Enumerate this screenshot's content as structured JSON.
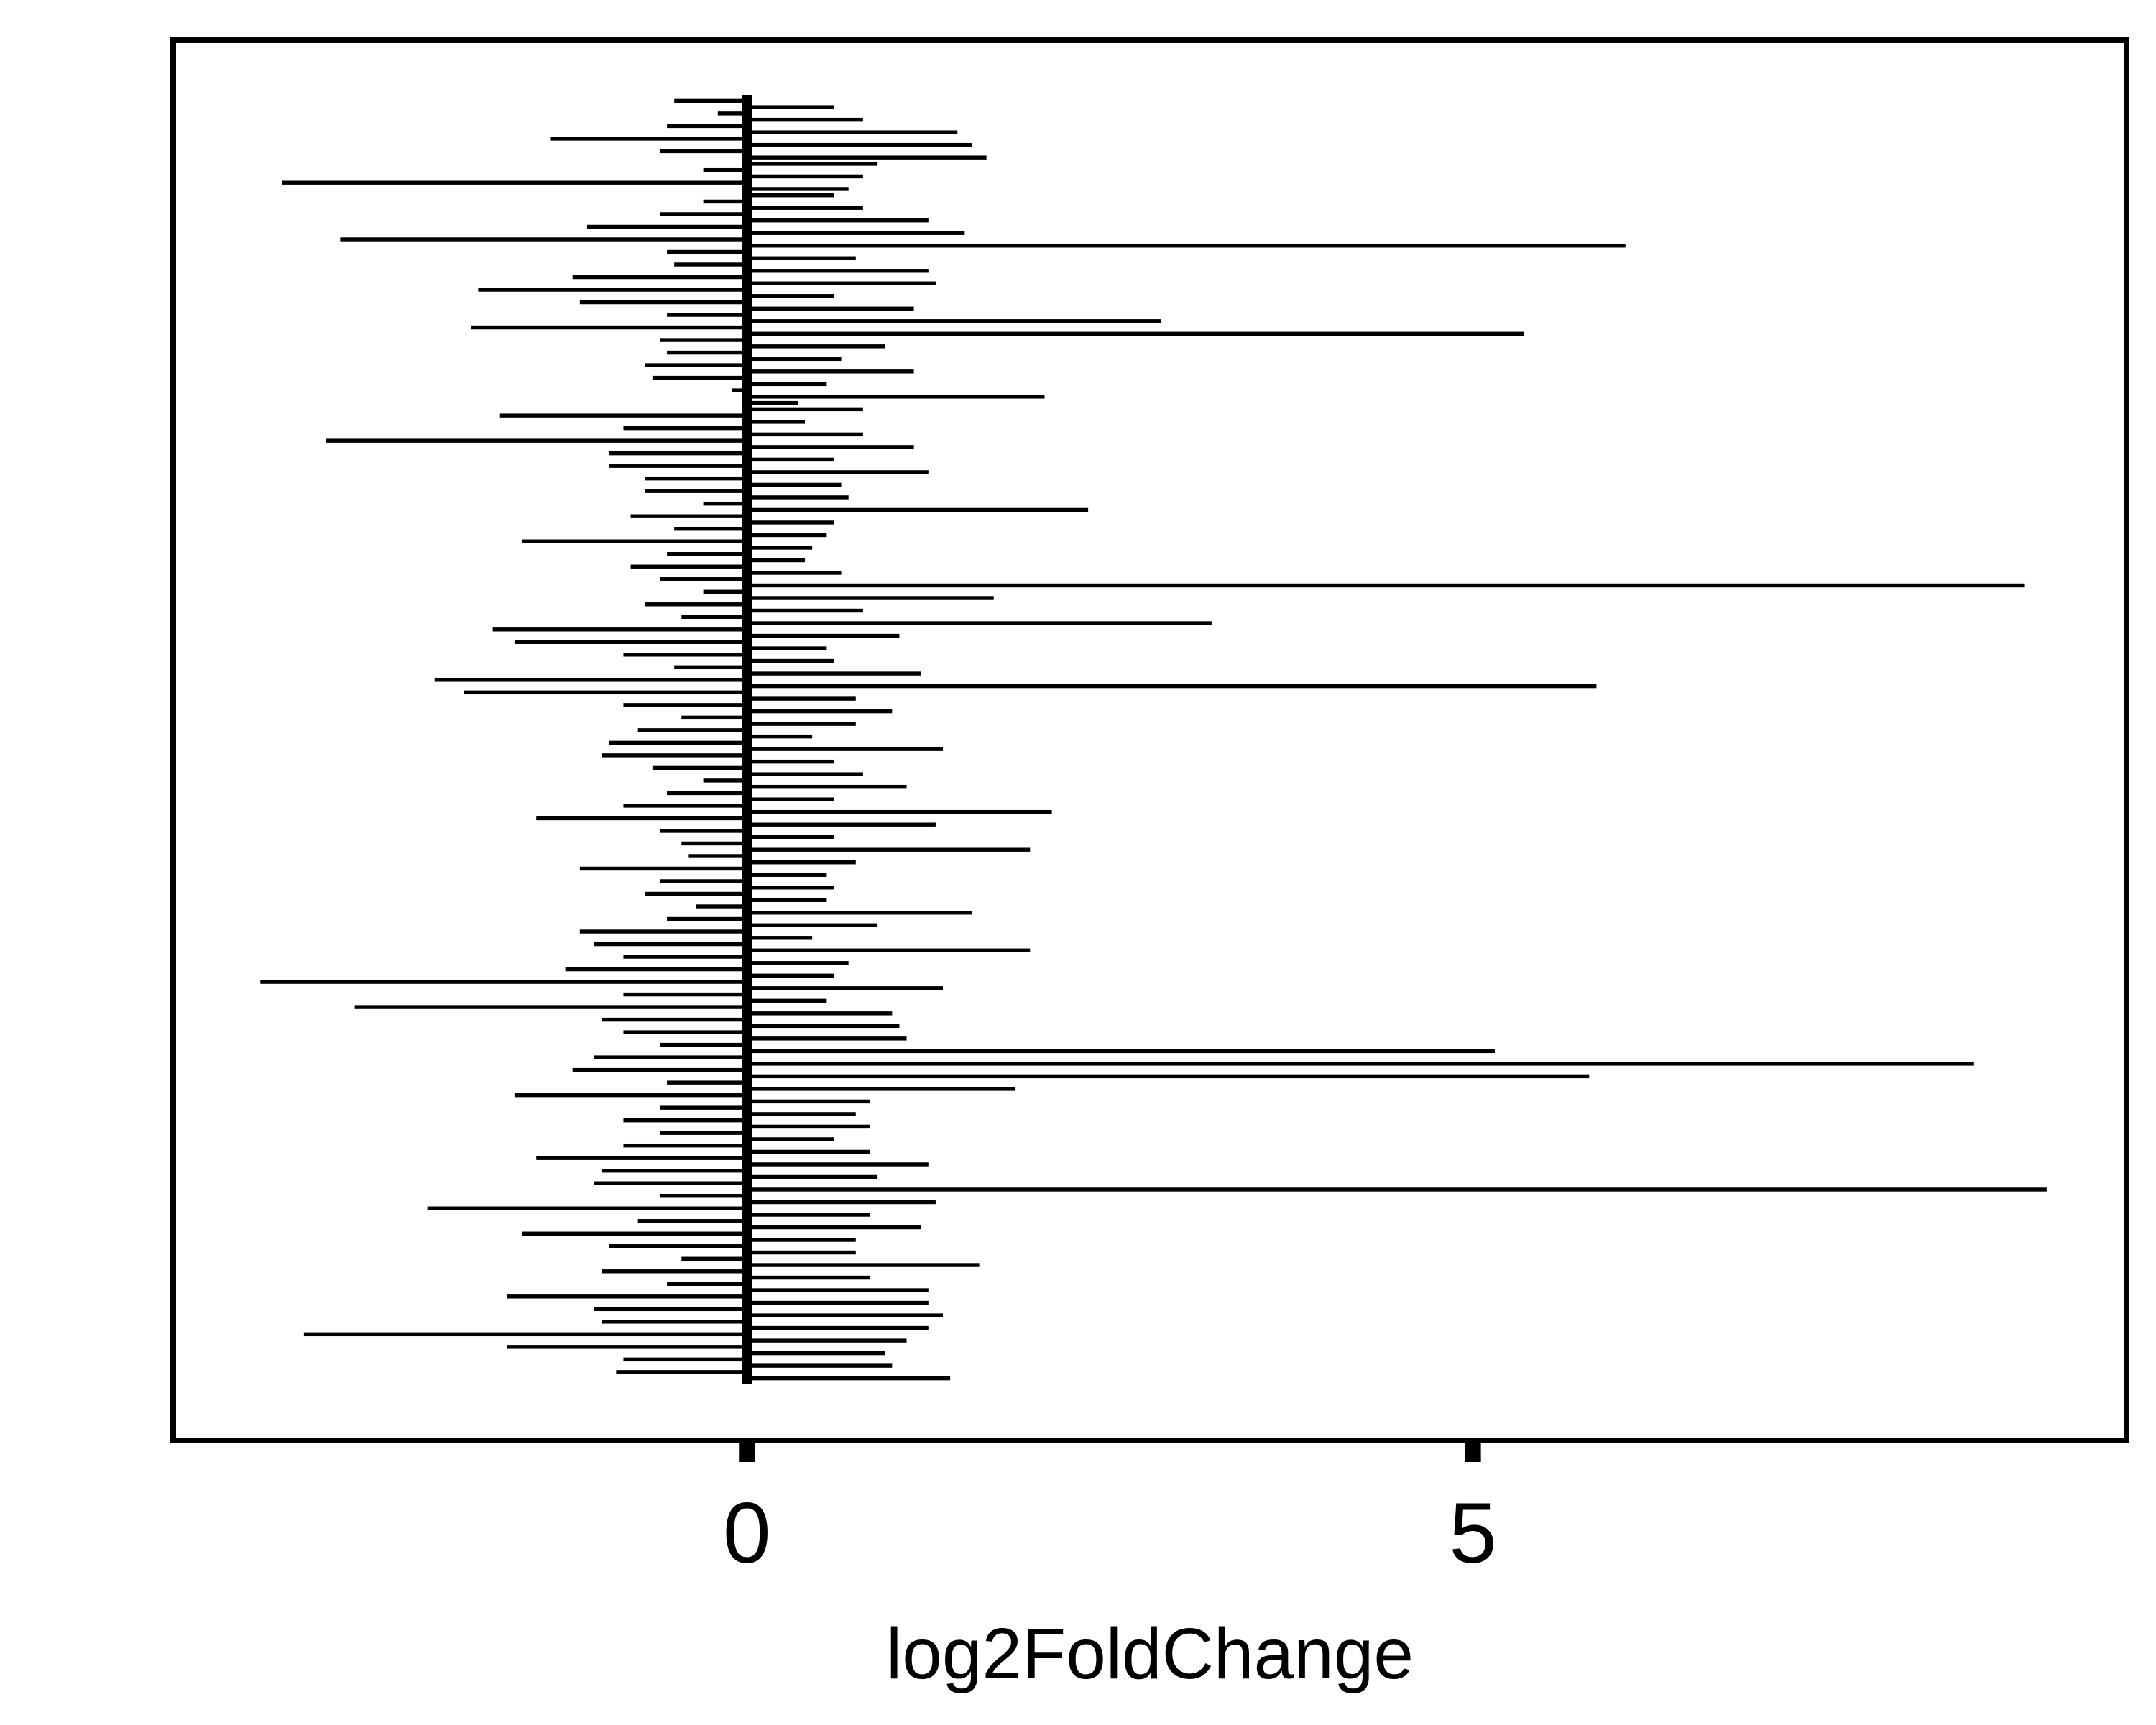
{
  "chart_data": {
    "type": "bar",
    "orientation": "horizontal",
    "title": "",
    "xlabel": "log2FoldChange",
    "ylabel": "",
    "xlim": [
      -3.95,
      9.5
    ],
    "x_ticks": [
      {
        "value": 0,
        "label": "0"
      },
      {
        "value": 5,
        "label": "5"
      }
    ],
    "grid": false,
    "legend": "none",
    "bar_color": "#000000",
    "values": [
      -0.5,
      0.6,
      -0.2,
      0.8,
      -0.55,
      1.45,
      -1.35,
      1.55,
      -0.6,
      1.65,
      0.9,
      -0.3,
      0.8,
      -3.2,
      0.7,
      0.6,
      -0.3,
      0.8,
      -0.6,
      1.25,
      -1.1,
      1.5,
      -2.8,
      6.05,
      -0.55,
      0.75,
      -0.5,
      1.25,
      -1.2,
      1.3,
      -1.85,
      0.6,
      -1.15,
      1.15,
      -0.55,
      2.85,
      -1.9,
      5.35,
      -0.6,
      0.95,
      -0.55,
      0.65,
      -0.7,
      1.15,
      -0.65,
      0.55,
      -0.1,
      2.05,
      0.35,
      0.8,
      -1.7,
      0.4,
      -0.85,
      0.8,
      -2.9,
      1.15,
      -0.95,
      0.6,
      -0.95,
      1.25,
      -0.7,
      0.65,
      -0.7,
      0.7,
      -0.3,
      2.35,
      -0.8,
      0.6,
      -0.5,
      0.55,
      -1.55,
      0.45,
      -0.55,
      0.4,
      -0.8,
      0.65,
      -0.6,
      8.8,
      -0.3,
      1.7,
      -0.7,
      0.8,
      -0.45,
      3.2,
      -1.75,
      1.05,
      -1.6,
      0.55,
      -0.85,
      0.6,
      -0.5,
      1.2,
      -2.15,
      5.85,
      -1.95,
      0.75,
      -0.85,
      1.0,
      -0.45,
      0.75,
      -0.75,
      0.45,
      -0.95,
      1.35,
      -1.0,
      0.6,
      -0.65,
      0.8,
      -0.3,
      1.1,
      -0.55,
      0.6,
      -0.85,
      2.1,
      -1.45,
      1.3,
      -0.6,
      0.6,
      -0.45,
      1.95,
      -0.4,
      0.75,
      -1.15,
      0.55,
      -0.6,
      0.6,
      -0.7,
      0.55,
      -0.35,
      1.55,
      -0.55,
      0.9,
      -1.15,
      0.45,
      -1.05,
      1.95,
      -0.85,
      0.7,
      -1.25,
      0.6,
      -3.35,
      1.35,
      -0.85,
      0.55,
      -2.7,
      1.0,
      -1.0,
      1.05,
      -0.85,
      1.1,
      -0.6,
      5.15,
      -1.05,
      8.45,
      -1.2,
      5.8,
      -0.55,
      1.85,
      -1.6,
      0.85,
      -0.6,
      0.75,
      -0.85,
      0.85,
      -0.6,
      0.6,
      -0.85,
      0.85,
      -1.45,
      1.25,
      -1.0,
      0.9,
      -1.05,
      8.95,
      -0.6,
      1.3,
      -2.2,
      0.85,
      -0.75,
      1.2,
      -1.55,
      0.75,
      -0.95,
      0.75,
      -0.45,
      1.6,
      -1.0,
      0.85,
      -0.55,
      1.25,
      -1.65,
      1.25,
      -1.05,
      1.35,
      -1.0,
      1.25,
      -3.05,
      1.1,
      -1.65,
      0.95,
      -0.85,
      1.0,
      -0.9,
      1.4
    ]
  }
}
